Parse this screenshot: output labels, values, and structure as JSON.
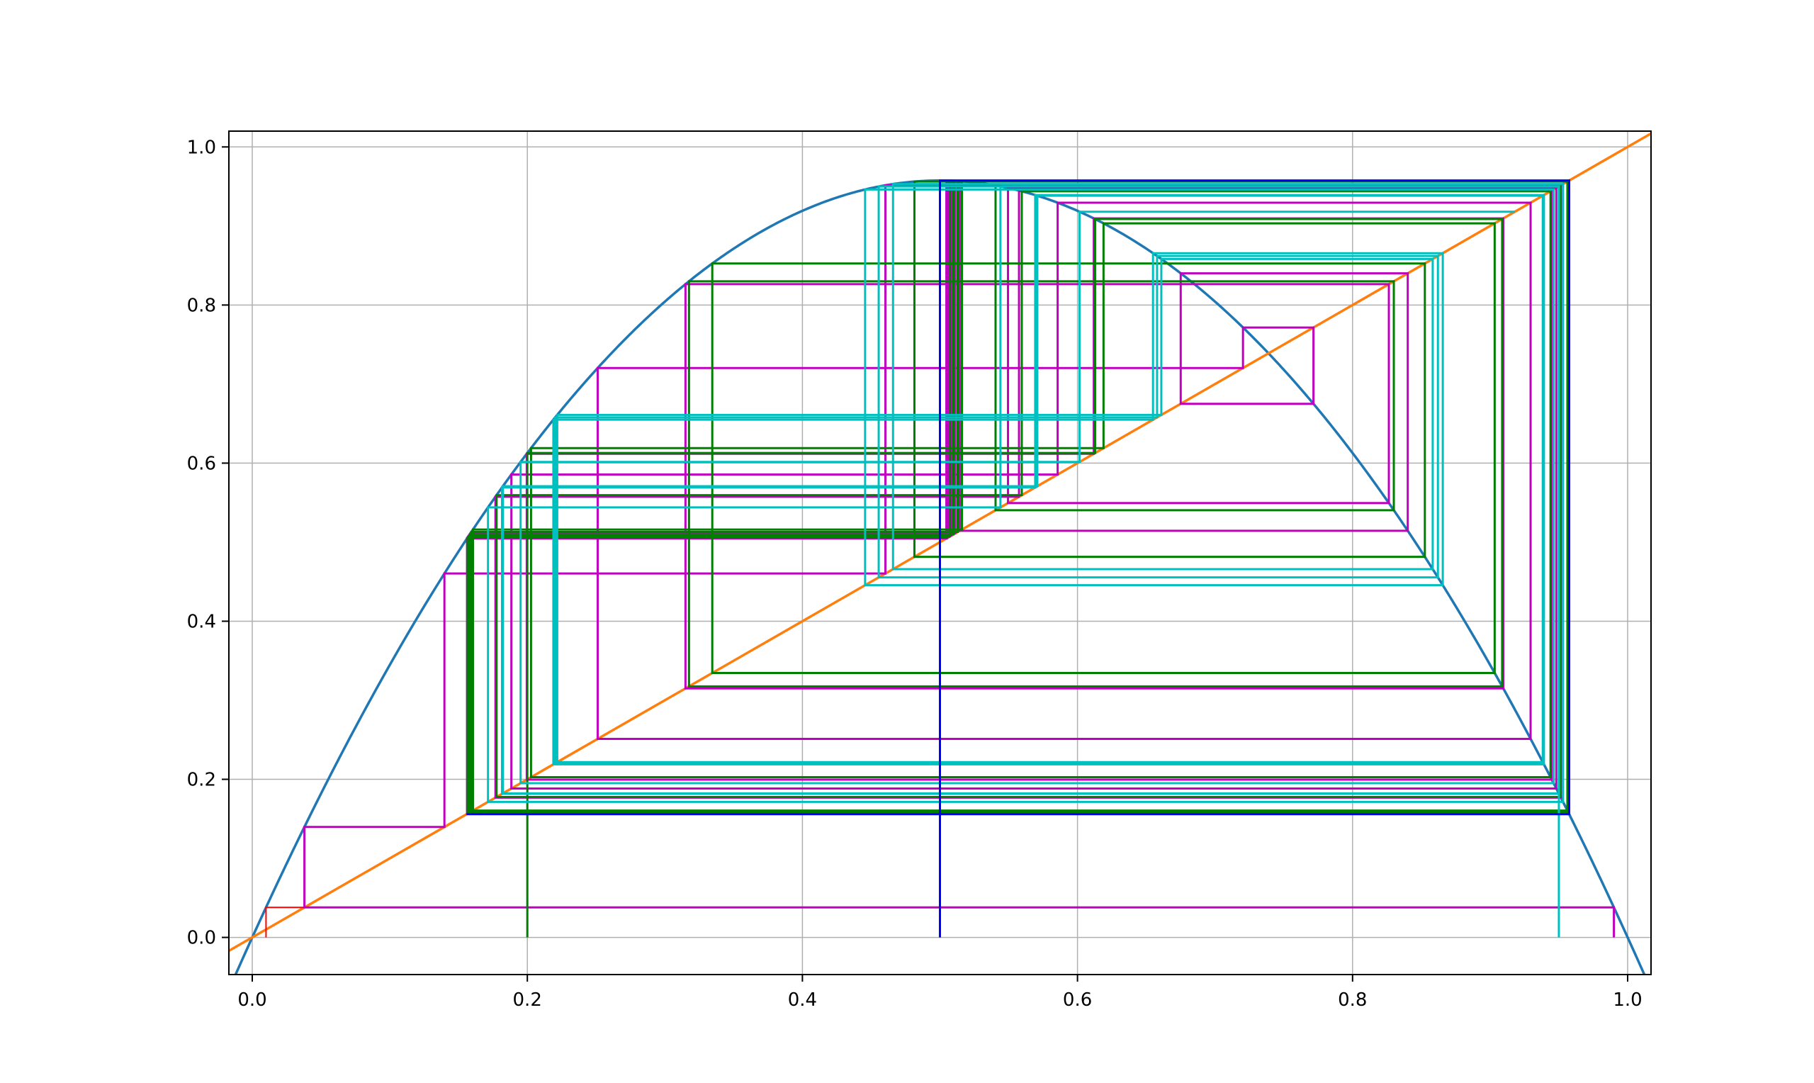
{
  "chart_data": {
    "type": "line",
    "title": "",
    "xlabel": "",
    "ylabel": "",
    "xlim": [
      -0.017,
      1.017
    ],
    "ylim": [
      -0.047,
      1.02
    ],
    "grid": true,
    "xticks": [
      0.0,
      0.2,
      0.4,
      0.6,
      0.8,
      1.0
    ],
    "yticks": [
      0.0,
      0.2,
      0.4,
      0.6,
      0.8,
      1.0
    ],
    "xtick_labels": [
      "0.0",
      "0.2",
      "0.4",
      "0.6",
      "0.8",
      "1.0"
    ],
    "ytick_labels": [
      "0.0",
      "0.2",
      "0.4",
      "0.6",
      "0.8",
      "1.0"
    ],
    "map": {
      "function": "logistic",
      "r": 3.83
    },
    "colors": {
      "curve": "#1f77b4",
      "diagonal": "#ff7f0e",
      "grid": "#b0b0b0",
      "red": "#ff0000",
      "magenta": "#bf00bf",
      "green": "#008000",
      "cyan": "#00bfbf",
      "blue": "#0000ff"
    },
    "series": [
      {
        "type": "curve",
        "color_key": "curve"
      },
      {
        "type": "diagonal",
        "color_key": "diagonal"
      },
      {
        "type": "cobweb",
        "x0": 0.01,
        "iterations": 2,
        "color_key": "red",
        "stroke": 2
      },
      {
        "type": "cobweb",
        "x0": 0.99,
        "iterations": 80,
        "color_key": "magenta",
        "stroke": 3
      },
      {
        "type": "cobweb",
        "x0": 0.2,
        "iterations": 30,
        "color_key": "green",
        "stroke": 3
      },
      {
        "type": "cobweb",
        "x0": 0.95,
        "iterations": 30,
        "color_key": "cyan",
        "stroke": 3
      },
      {
        "type": "cobweb",
        "x0": 0.5,
        "iterations": 2,
        "color_key": "blue",
        "stroke": 3
      }
    ]
  }
}
